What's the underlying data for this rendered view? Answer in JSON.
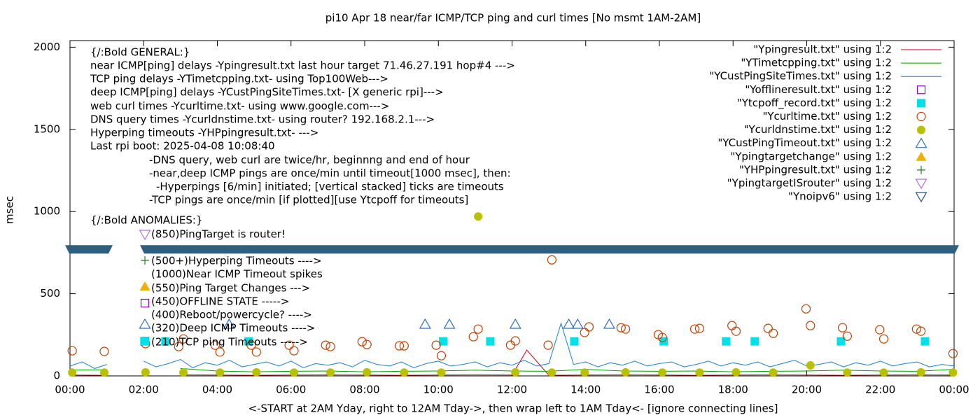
{
  "chart_data": {
    "type": "line",
    "title": "pi10 Apr 18  near/far ICMP/TCP ping and curl times [No msmt 1AM-2AM]",
    "x_label": "<-START at 2AM Yday, right to 12AM Tday->, then wrap left to 1AM Tday<- [ignore connecting lines]",
    "y_label": "msec",
    "xlim": [
      0,
      24
    ],
    "xticks": [
      {
        "value": 0,
        "label": "00:00"
      },
      {
        "value": 2,
        "label": "02:00"
      },
      {
        "value": 4,
        "label": "04:00"
      },
      {
        "value": 6,
        "label": "06:00"
      },
      {
        "value": 8,
        "label": "08:00"
      },
      {
        "value": 10,
        "label": "10:00"
      },
      {
        "value": 12,
        "label": "12:00"
      },
      {
        "value": 14,
        "label": "14:00"
      },
      {
        "value": 16,
        "label": "16:00"
      },
      {
        "value": 18,
        "label": "18:00"
      },
      {
        "value": 20,
        "label": "20:00"
      },
      {
        "value": 22,
        "label": "22:00"
      },
      {
        "value": 24,
        "label": "00:00"
      }
    ],
    "ylim": [
      0,
      2040
    ],
    "yticks": [
      0,
      500,
      1000,
      1500,
      2000
    ],
    "grid": false,
    "legend": "top-right",
    "hline": {
      "value": 770,
      "color": "#2e5f7e"
    },
    "annotations": [
      "{/:Bold GENERAL:}",
      "near ICMP[ping] delays -Ypingresult.txt last hour target 71.46.27.191 hop#4 --->",
      "TCP ping delays -YTimetcpping.txt- using Top100Web--->",
      "deep ICMP[ping] delays -YCustPingSiteTimes.txt- [X generic rpi]--->",
      "web curl times -Ycurltime.txt- using www.google.com--->",
      "DNS query times -Ycurldnstime.txt- using router? 192.168.2.1--->",
      "Hyperping timeouts -YHPpingresult.txt- --->",
      "Last rpi boot: 2025-04-08 10:08:40",
      "-DNS query, web curl are twice/hr, beginnng and end of hour",
      "-near,deep ICMP pings are once/min until timeout[1000 msec], then:",
      "-Hyperpings [6/min] initiated; [vertical stacked] ticks are timeouts",
      "-TCP pings are once/min [if plotted][use Ytcpoff for timeouts]",
      "{/:Bold ANOMALIES:}",
      "(850)PingTarget is router!",
      "(500+)Hyperping Timeouts ---->",
      "(1000)Near ICMP Timeout spikes",
      "(550)Ping Target Changes --->",
      "(450)OFFLINE STATE ----->",
      "(400)Reboot/powercycle? ---->",
      "(320)Deep ICMP Timeouts ---->",
      "(210)TCP ping Timeouts ----->"
    ],
    "series": [
      {
        "name": "\"Ypingresult.txt\" using 1:2",
        "color": "#cc0000",
        "marker": "line",
        "x": [
          0,
          1,
          2,
          3,
          4,
          5,
          6,
          7,
          8,
          9,
          10,
          11,
          12,
          12.4,
          13,
          14,
          15,
          16,
          17,
          18,
          19,
          20,
          21,
          22,
          23,
          24
        ],
        "values": [
          5,
          4,
          null,
          6,
          5,
          4,
          5,
          6,
          5,
          4,
          5,
          6,
          5,
          157,
          4,
          5,
          6,
          5,
          4,
          5,
          6,
          5,
          4,
          5,
          6,
          5
        ]
      },
      {
        "name": "\"YTimetcpping.txt\" using 1:2",
        "color": "#00a000",
        "marker": "line",
        "x": [
          0,
          1,
          2,
          3,
          4,
          5,
          6,
          7,
          8,
          9,
          10,
          11,
          12,
          13,
          14,
          15,
          16,
          17,
          18,
          19,
          20,
          21,
          22,
          23,
          24
        ],
        "values": [
          35,
          38,
          null,
          45,
          30,
          25,
          28,
          30,
          25,
          28,
          30,
          35,
          30,
          28,
          40,
          30,
          28,
          30,
          25,
          28,
          30,
          35,
          30,
          28,
          40
        ]
      },
      {
        "name": "\"YCustPingSiteTimes.txt\" using 1:2",
        "color": "#1a7fd0",
        "marker": "line",
        "x": [
          0,
          0.33,
          0.67,
          1,
          1.33,
          1.67,
          2,
          2.33,
          2.67,
          3,
          3.33,
          3.67,
          4,
          4.33,
          4.67,
          5,
          5.33,
          5.67,
          6,
          6.33,
          6.67,
          7,
          7.33,
          7.67,
          8,
          8.33,
          8.67,
          9,
          9.33,
          9.67,
          10,
          10.33,
          10.67,
          11,
          11.33,
          11.67,
          12,
          12.33,
          12.67,
          13,
          13.33,
          13.67,
          14,
          14.33,
          14.67,
          15,
          15.33,
          15.67,
          16,
          16.33,
          16.67,
          17,
          17.33,
          17.67,
          18,
          18.33,
          18.67,
          19,
          19.33,
          19.67,
          20,
          20.33,
          20.67,
          21,
          21.33,
          21.67,
          22,
          22.33,
          22.67,
          23,
          23.33,
          23.67,
          24
        ],
        "values": [
          60,
          85,
          45,
          70,
          null,
          null,
          90,
          55,
          75,
          100,
          50,
          80,
          65,
          95,
          55,
          70,
          85,
          60,
          90,
          50,
          75,
          65,
          80,
          55,
          95,
          70,
          60,
          85,
          50,
          75,
          90,
          60,
          70,
          85,
          55,
          80,
          65,
          95,
          60,
          75,
          320,
          70,
          85,
          55,
          80,
          65,
          90,
          60,
          75,
          85,
          55,
          70,
          90,
          60,
          80,
          65,
          85,
          55,
          75,
          95,
          60,
          70,
          85,
          55,
          80,
          65,
          90,
          60,
          75,
          85,
          55,
          70,
          60
        ]
      },
      {
        "name": "\"Yofflineresult.txt\" using 1:2",
        "color": "#9400d3",
        "marker": "square",
        "x": [],
        "values": []
      },
      {
        "name": "\"Ytcpoff_record.txt\" using 1:2",
        "color": "#00e0e8",
        "marker": "square-filled",
        "x": [
          2.02,
          2.59,
          4.85,
          10.13,
          11.41,
          13.69,
          16.12,
          17.81,
          18.59,
          20.93,
          23.21
        ],
        "values": [
          210,
          210,
          210,
          210,
          210,
          210,
          210,
          210,
          210,
          210,
          210
        ]
      },
      {
        "name": "\"Ycurltime.txt\" using 1:2",
        "color": "#c04000",
        "marker": "circle",
        "x": [
          0.06,
          0.93,
          2.05,
          2.95,
          3.08,
          3.94,
          4.07,
          4.92,
          5.06,
          5.95,
          6.08,
          6.94,
          7.07,
          7.93,
          8.06,
          8.94,
          9.07,
          9.94,
          10.08,
          10.95,
          11.08,
          11.96,
          12.09,
          12.98,
          13.08,
          13.97,
          14.09,
          14.96,
          15.08,
          15.97,
          16.08,
          16.96,
          17.09,
          17.97,
          18.08,
          18.95,
          19.09,
          19.98,
          20.1,
          20.97,
          21.1,
          21.98,
          22.09,
          22.98,
          23.1,
          23.97
        ],
        "values": [
          153,
          149,
          196,
          178,
          225,
          187,
          145,
          187,
          145,
          187,
          153,
          187,
          178,
          208,
          191,
          183,
          183,
          187,
          123,
          238,
          285,
          187,
          213,
          187,
          706,
          264,
          298,
          293,
          285,
          251,
          234,
          285,
          289,
          306,
          272,
          289,
          259,
          408,
          306,
          293,
          242,
          281,
          225,
          285,
          272,
          136
        ]
      },
      {
        "name": "\"Ycurldnstime.txt\" using 1:2",
        "color": "#b8c000",
        "marker": "circle-filled",
        "x": [
          0.06,
          0.93,
          2.05,
          3.08,
          4.07,
          5.06,
          6.08,
          7.07,
          8.06,
          9.07,
          10.08,
          11.08,
          12.09,
          13.08,
          13.97,
          15.08,
          16.08,
          17.09,
          18.08,
          19.09,
          20.1,
          21.1,
          22.09,
          23.1,
          23.97
        ],
        "values": [
          20,
          20,
          22,
          20,
          20,
          22,
          20,
          20,
          22,
          20,
          20,
          970,
          22,
          20,
          20,
          22,
          20,
          20,
          22,
          20,
          64,
          20,
          20,
          22,
          20
        ]
      },
      {
        "name": "\"YCustPingTimeout.txt\" using 1:2",
        "color": "#3070c0",
        "marker": "triangle",
        "x": [
          4.32,
          9.64,
          10.3,
          12.09,
          13.54,
          13.78,
          14.64
        ],
        "values": [
          315,
          315,
          315,
          315,
          315,
          315,
          315
        ]
      },
      {
        "name": "\"Ypingtargetchange\" using 1:2",
        "color": "#f0b000",
        "marker": "triangle-filled",
        "x": [],
        "values": []
      },
      {
        "name": "\"YHPpingresult.txt\" using 1:2",
        "color": "#208020",
        "marker": "cross",
        "x": [],
        "values": []
      },
      {
        "name": "\"YpingtargetISrouter\" using 1:2",
        "color": "#b070e0",
        "marker": "triangle-down",
        "x": [],
        "values": []
      },
      {
        "name": "\"Ynoipv6\" using 1:2",
        "color": "#205090",
        "marker": "triangle-down",
        "x": [],
        "values": []
      }
    ]
  }
}
